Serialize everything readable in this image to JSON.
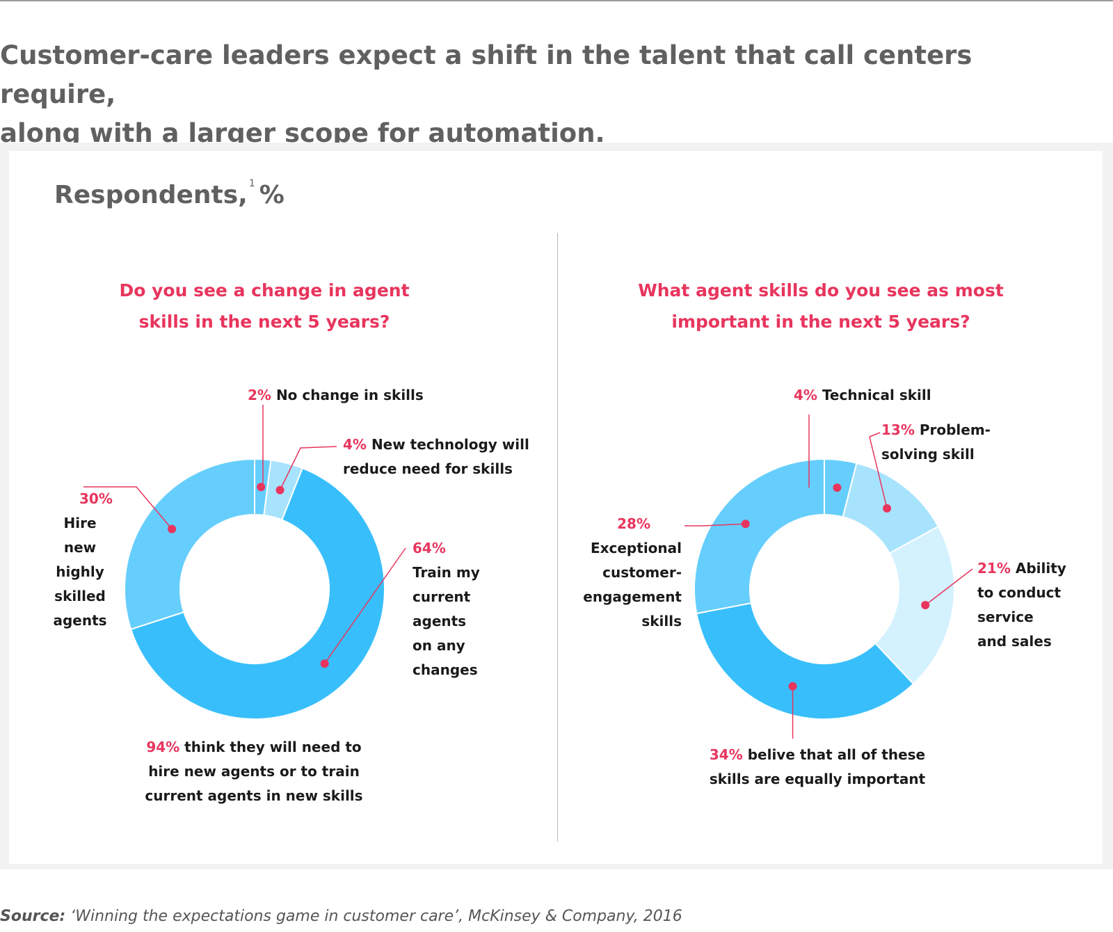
{
  "headline_line1": "Customer-care leaders expect a shift in the talent that call centers require,",
  "headline_line2": "along with a larger scope for automation.",
  "subtitle": {
    "text": "Respondents,",
    "footnote": "1",
    "unit": "%"
  },
  "colors": {
    "accent": "#e8355d",
    "slice_dark": "#38bffb",
    "slice_mid": "#66cefc",
    "slice_light": "#a8e3fd",
    "slice_lightest": "#d4f1fe"
  },
  "chart_data": [
    {
      "type": "pie",
      "title_line1": "Do you see a change in agent",
      "title_line2": "skills in the next 5 years?",
      "slices": [
        {
          "label": "No change in skills",
          "value": 2,
          "display": "2%"
        },
        {
          "label_line1": "New technology will",
          "label_line2": "reduce need for skills",
          "value": 4,
          "display": "4%"
        },
        {
          "lines": [
            "Train my",
            "current",
            "agents",
            "on any",
            "changes"
          ],
          "value": 64,
          "display": "64%"
        },
        {
          "lines": [
            "Hire",
            "new",
            "highly",
            "skilled",
            "agents"
          ],
          "value": 30,
          "display": "30%"
        }
      ],
      "summary": {
        "pct": "94%",
        "line1": "think they will need to",
        "line2": "hire new agents or to train",
        "line3": "current agents in new skills"
      }
    },
    {
      "type": "pie",
      "title_line1": "What agent skills do you see as most",
      "title_line2": "important in the next 5 years?",
      "slices": [
        {
          "label": "Technical skill",
          "value": 4,
          "display": "4%"
        },
        {
          "label_line1": "Problem-",
          "label_line2": "solving skill",
          "value": 13,
          "display": "13%"
        },
        {
          "label_line1": "Ability",
          "lines": [
            "to conduct",
            "service",
            "and sales"
          ],
          "value": 21,
          "display": "21%"
        },
        {
          "label_line1": "belive that all of these",
          "label_line2": "skills are equally important",
          "value": 34,
          "display": "34%"
        },
        {
          "lines": [
            "Exceptional",
            "customer-",
            "engagement",
            "skills"
          ],
          "value": 28,
          "display": "28%"
        }
      ]
    }
  ],
  "source": {
    "label": "Source:",
    "text": " ‘Winning the expectations game in customer care’, McKinsey & Company, 2016"
  }
}
